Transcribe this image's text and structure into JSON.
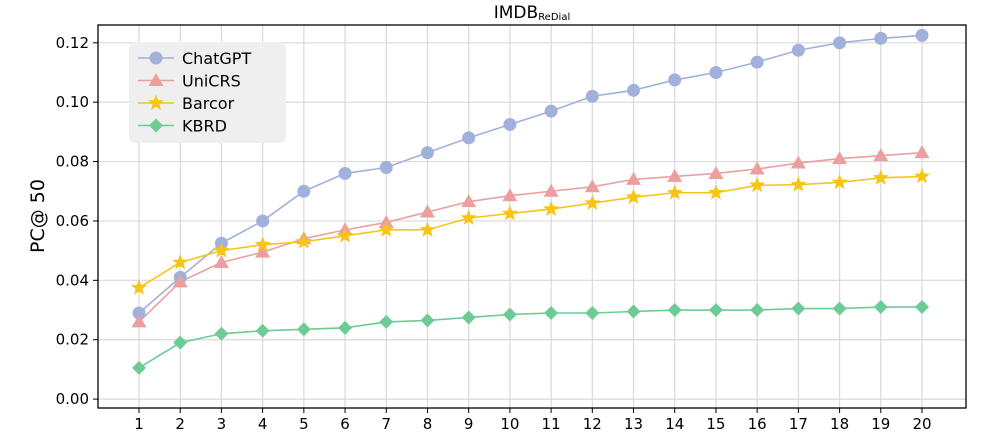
{
  "chart_data": {
    "type": "line",
    "title": "IMDB",
    "title_subscript": "ReDial",
    "xlabel": "",
    "ylabel": "PC@ 50",
    "x": [
      1,
      2,
      3,
      4,
      5,
      6,
      7,
      8,
      9,
      10,
      11,
      12,
      13,
      14,
      15,
      16,
      17,
      18,
      19,
      20
    ],
    "x_tick_labels": [
      "1",
      "2",
      "3",
      "4",
      "5",
      "6",
      "7",
      "8",
      "9",
      "10",
      "11",
      "12",
      "13",
      "14",
      "15",
      "16",
      "17",
      "18",
      "19",
      "20"
    ],
    "ylim": [
      -0.003,
      0.126
    ],
    "y_ticks": [
      0.0,
      0.02,
      0.04,
      0.06,
      0.08,
      0.1,
      0.12
    ],
    "y_tick_labels": [
      "0.00",
      "0.02",
      "0.04",
      "0.06",
      "0.08",
      "0.10",
      "0.12"
    ],
    "grid": true,
    "legend_position": "top-left",
    "series": [
      {
        "name": "ChatGPT",
        "color": "#a2b1dc",
        "marker": "circle",
        "values": [
          0.029,
          0.041,
          0.0525,
          0.06,
          0.07,
          0.076,
          0.078,
          0.083,
          0.088,
          0.0925,
          0.097,
          0.102,
          0.104,
          0.1075,
          0.11,
          0.1135,
          0.1175,
          0.12,
          0.1215,
          0.1225
        ]
      },
      {
        "name": "UniCRS",
        "color": "#ec9f9f",
        "marker": "triangle",
        "values": [
          0.026,
          0.0395,
          0.046,
          0.0495,
          0.054,
          0.057,
          0.0595,
          0.063,
          0.0665,
          0.0685,
          0.07,
          0.0715,
          0.074,
          0.075,
          0.076,
          0.0775,
          0.0795,
          0.081,
          0.082,
          0.083
        ]
      },
      {
        "name": "Barcor",
        "color": "#f7c518",
        "marker": "star",
        "values": [
          0.0375,
          0.046,
          0.05,
          0.052,
          0.053,
          0.055,
          0.057,
          0.057,
          0.061,
          0.0625,
          0.064,
          0.066,
          0.068,
          0.0695,
          0.0695,
          0.072,
          0.0722,
          0.073,
          0.0745,
          0.075
        ]
      },
      {
        "name": "KBRD",
        "color": "#6dcc96",
        "marker": "diamond",
        "values": [
          0.0105,
          0.019,
          0.022,
          0.023,
          0.0235,
          0.024,
          0.026,
          0.0265,
          0.0275,
          0.0285,
          0.029,
          0.029,
          0.0295,
          0.03,
          0.03,
          0.03,
          0.0305,
          0.0305,
          0.031,
          0.031
        ]
      }
    ]
  }
}
